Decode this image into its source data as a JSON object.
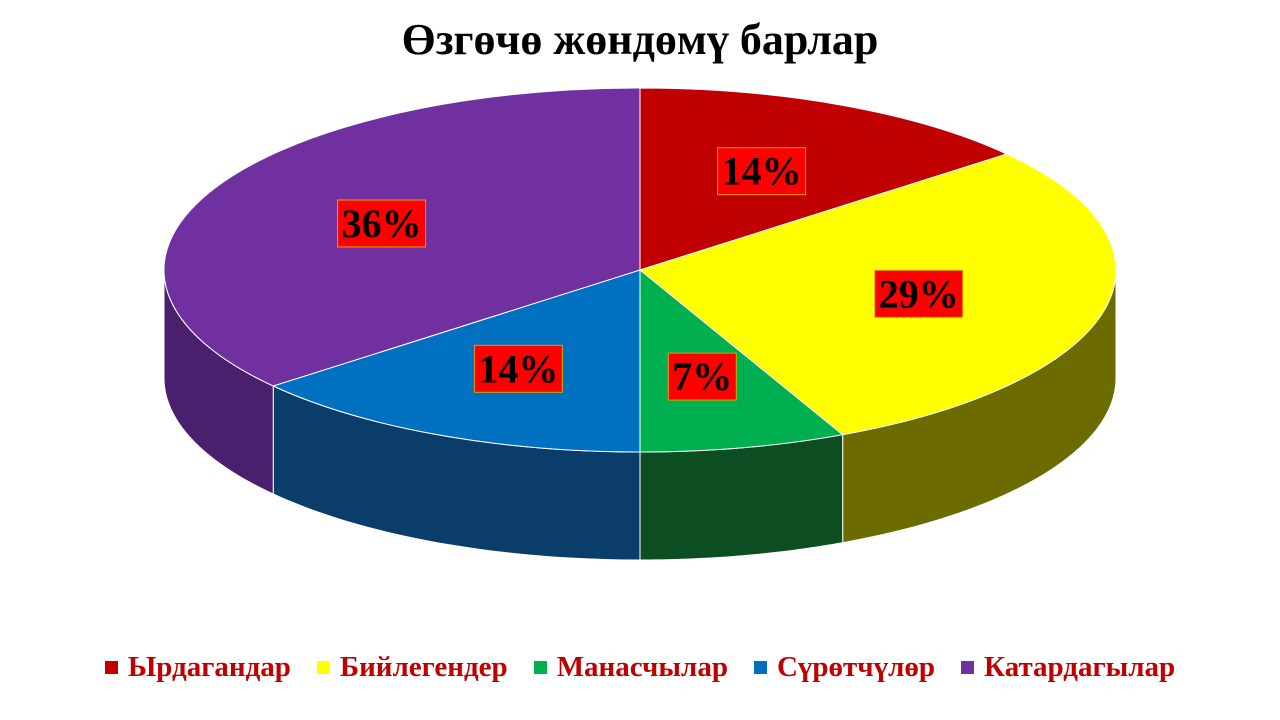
{
  "chart_data": {
    "type": "pie",
    "title": "Өзгөчө жөндөмү барлар",
    "categories": [
      "Ырдагандар",
      "Бийлегендер",
      "Манасчылар",
      "Сүрөтчүлөр",
      "Катардагылар"
    ],
    "values": [
      14,
      29,
      7,
      14,
      36
    ],
    "data_labels": [
      "14%",
      "29%",
      "7%",
      "14%",
      "36%"
    ],
    "colors": [
      "#c00000",
      "#ffff00",
      "#00b050",
      "#0070c0",
      "#7030a0"
    ],
    "side_colors": [
      "#7a0000",
      "#6b6b00",
      "#0d4d22",
      "#0b3d6b",
      "#4a1f6e"
    ],
    "label_box_color": "#ff0000",
    "legend_text_color": "#c00000",
    "legend_position": "bottom",
    "start_angle": "12 o'clock",
    "direction": "clockwise",
    "style": "3d"
  }
}
